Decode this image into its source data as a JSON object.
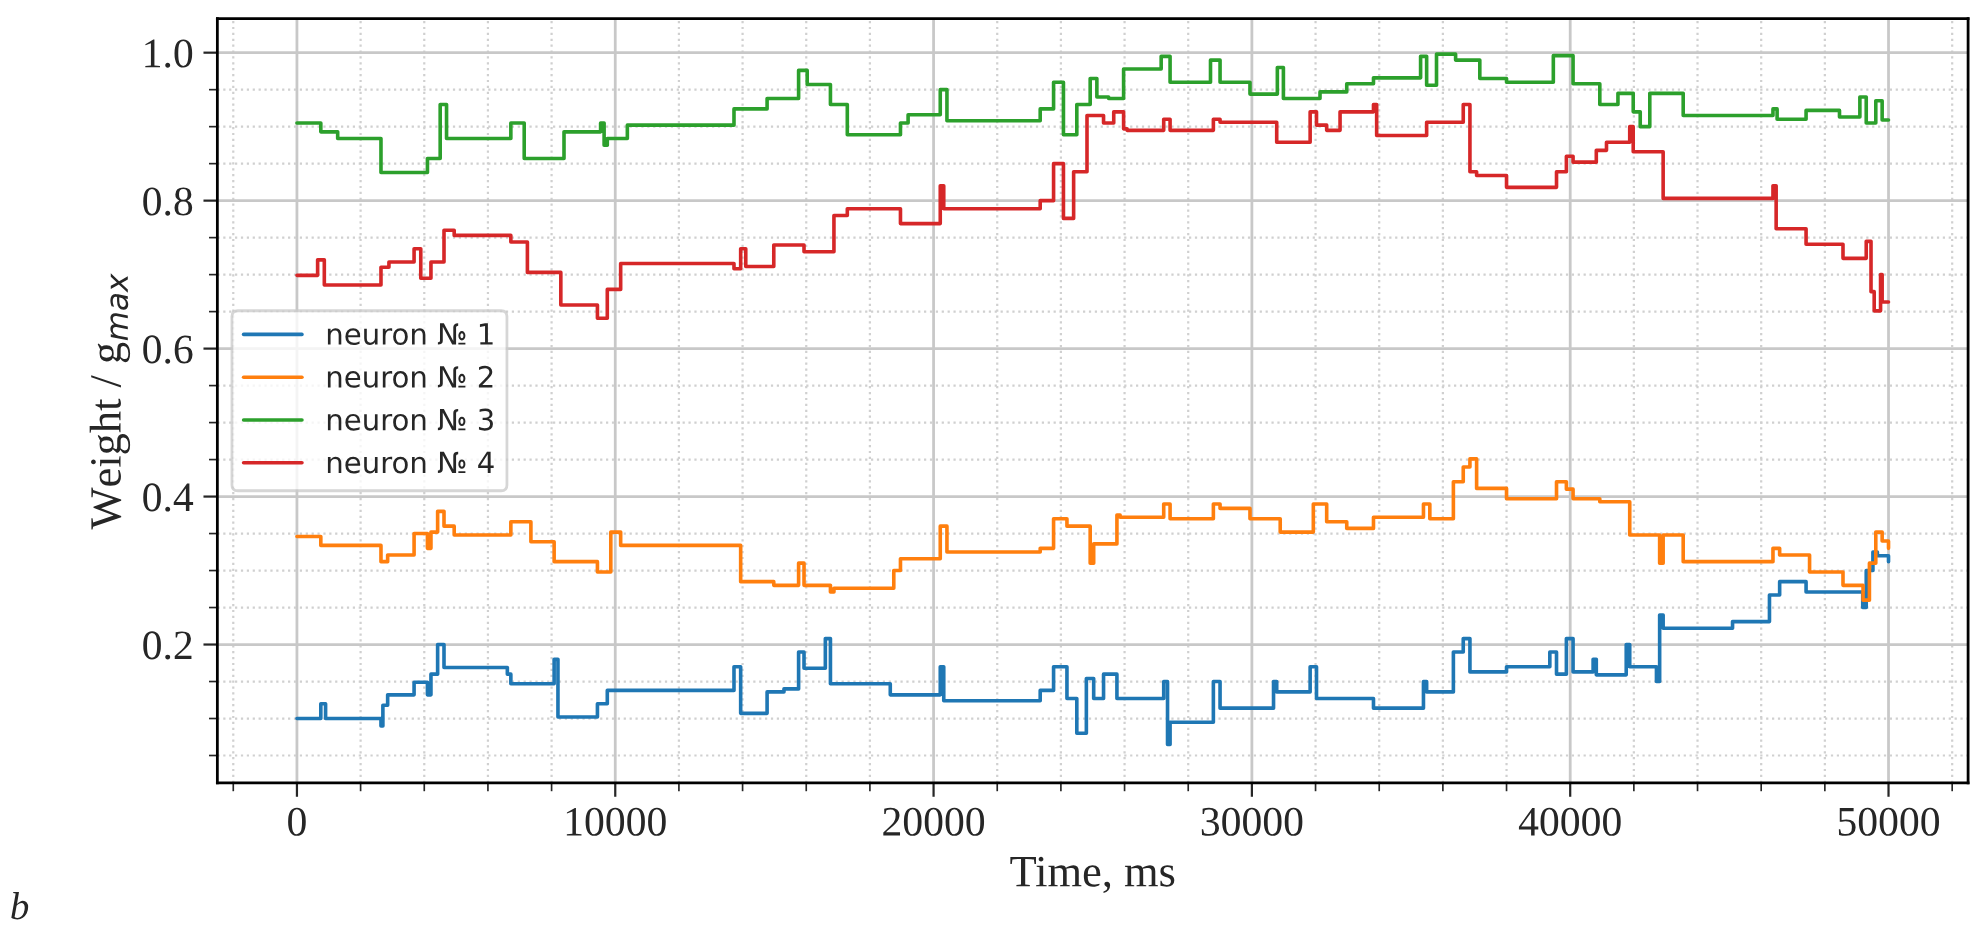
{
  "chart_data": {
    "type": "step",
    "xlabel": "Time, ms",
    "ylabel": "Weight / g$_{max}$",
    "xlim": [
      -2500,
      52500
    ],
    "ylim": [
      0.013,
      1.046
    ],
    "xticks": [
      {
        "value": -2000,
        "label": null
      },
      0,
      {
        "value": 2000,
        "label": null
      },
      {
        "value": 4000,
        "label": null
      },
      {
        "value": 6000,
        "label": null
      },
      {
        "value": 8000,
        "label": null
      },
      10000,
      {
        "value": 12000,
        "label": null
      },
      {
        "value": 14000,
        "label": null
      },
      {
        "value": 16000,
        "label": null
      },
      {
        "value": 18000,
        "label": null
      },
      20000,
      {
        "value": 22000,
        "label": null
      },
      {
        "value": 24000,
        "label": null
      },
      {
        "value": 26000,
        "label": null
      },
      {
        "value": 28000,
        "label": null
      },
      30000,
      {
        "value": 32000,
        "label": null
      },
      {
        "value": 34000,
        "label": null
      },
      {
        "value": 36000,
        "label": null
      },
      {
        "value": 38000,
        "label": null
      },
      40000,
      {
        "value": 42000,
        "label": null
      },
      {
        "value": 44000,
        "label": null
      },
      {
        "value": 46000,
        "label": null
      },
      {
        "value": 48000,
        "label": null
      },
      50000,
      {
        "value": 52000,
        "label": null
      }
    ],
    "yticks": [
      {
        "value": 0.05,
        "label": null
      },
      {
        "value": 0.1,
        "label": null
      },
      {
        "value": 0.15,
        "label": null
      },
      {
        "value": 0.2,
        "label": "0.2"
      },
      {
        "value": 0.25,
        "label": null
      },
      {
        "value": 0.3,
        "label": null
      },
      {
        "value": 0.35,
        "label": null
      },
      {
        "value": 0.4,
        "label": "0.4"
      },
      {
        "value": 0.45,
        "label": null
      },
      {
        "value": 0.5,
        "label": null
      },
      {
        "value": 0.55,
        "label": null
      },
      {
        "value": 0.6,
        "label": "0.6"
      },
      {
        "value": 0.65,
        "label": null
      },
      {
        "value": 0.7,
        "label": null
      },
      {
        "value": 0.75,
        "label": null
      },
      {
        "value": 0.8,
        "label": "0.8"
      },
      {
        "value": 0.85,
        "label": null
      },
      {
        "value": 0.9,
        "label": null
      },
      {
        "value": 0.95,
        "label": null
      },
      {
        "value": 1.0,
        "label": "1.0"
      }
    ],
    "grid": true,
    "legend": "left",
    "line_style": "solid",
    "marker": "none",
    "annotations": [
      "b"
    ],
    "series": [
      {
        "name": "neuron № 1",
        "color": "#1f77b4",
        "x": [
          0,
          750,
          900,
          2640,
          2700,
          2850,
          3680,
          4100,
          4210,
          4420,
          4620,
          4940,
          6610,
          6720,
          7240,
          8080,
          8200,
          8290,
          9440,
          9750,
          9900,
          13520,
          13730,
          13940,
          14770,
          15300,
          15760,
          15930,
          16600,
          16760,
          16870,
          18640,
          18960,
          20210,
          20320,
          23140,
          23350,
          23770,
          24190,
          24500,
          24800,
          25030,
          25340,
          25760,
          25860,
          27230,
          27350,
          27430,
          28790,
          29000,
          30680,
          30780,
          31830,
          32030,
          33820,
          35390,
          35490,
          36330,
          36640,
          36850,
          37060,
          38000,
          39360,
          39570,
          39880,
          40090,
          40720,
          40820,
          41760,
          41870,
          41980,
          42710,
          42810,
          42920,
          45100,
          46260,
          46580,
          47410,
          49190,
          49300,
          49510,
          49650,
          50000
        ],
        "values": [
          0.1,
          0.12,
          0.1,
          0.09,
          0.118,
          0.132,
          0.149,
          0.132,
          0.16,
          0.2,
          0.169,
          0.169,
          0.16,
          0.147,
          0.147,
          0.18,
          0.102,
          0.102,
          0.12,
          0.138,
          0.138,
          0.138,
          0.17,
          0.107,
          0.136,
          0.14,
          0.19,
          0.168,
          0.208,
          0.147,
          0.147,
          0.132,
          0.132,
          0.17,
          0.124,
          0.124,
          0.138,
          0.17,
          0.127,
          0.08,
          0.154,
          0.127,
          0.16,
          0.127,
          0.127,
          0.15,
          0.065,
          0.095,
          0.15,
          0.114,
          0.15,
          0.136,
          0.17,
          0.127,
          0.114,
          0.15,
          0.136,
          0.19,
          0.208,
          0.163,
          0.163,
          0.17,
          0.19,
          0.16,
          0.208,
          0.163,
          0.18,
          0.159,
          0.2,
          0.17,
          0.17,
          0.15,
          0.24,
          0.222,
          0.231,
          0.267,
          0.285,
          0.271,
          0.25,
          0.3,
          0.325,
          0.32,
          0.312
        ]
      },
      {
        "name": "neuron № 2",
        "color": "#ff7f0e",
        "x": [
          0,
          750,
          2640,
          2850,
          3680,
          4100,
          4210,
          4420,
          4620,
          4940,
          6610,
          6720,
          7350,
          8080,
          8290,
          9440,
          9860,
          10170,
          13520,
          13940,
          14770,
          14980,
          15760,
          15930,
          16760,
          16870,
          18640,
          18750,
          18960,
          20210,
          20420,
          23140,
          23350,
          23770,
          24190,
          24920,
          25030,
          25760,
          25860,
          27230,
          27430,
          28790,
          29000,
          29940,
          30890,
          31930,
          32350,
          32980,
          33820,
          35390,
          35590,
          36330,
          36640,
          36850,
          37060,
          38000,
          39570,
          39880,
          40090,
          40930,
          41870,
          42810,
          42920,
          43550,
          46370,
          46580,
          47520,
          48570,
          49200,
          49400,
          49600,
          49800,
          50000
        ],
        "values": [
          0.346,
          0.334,
          0.312,
          0.321,
          0.35,
          0.33,
          0.352,
          0.38,
          0.36,
          0.348,
          0.348,
          0.366,
          0.339,
          0.312,
          0.312,
          0.298,
          0.352,
          0.334,
          0.334,
          0.285,
          0.285,
          0.28,
          0.31,
          0.28,
          0.271,
          0.276,
          0.276,
          0.3,
          0.316,
          0.36,
          0.325,
          0.325,
          0.33,
          0.37,
          0.36,
          0.31,
          0.336,
          0.375,
          0.372,
          0.39,
          0.37,
          0.39,
          0.384,
          0.37,
          0.352,
          0.39,
          0.366,
          0.357,
          0.372,
          0.39,
          0.37,
          0.42,
          0.44,
          0.451,
          0.411,
          0.397,
          0.42,
          0.41,
          0.397,
          0.393,
          0.348,
          0.31,
          0.348,
          0.312,
          0.33,
          0.321,
          0.298,
          0.28,
          0.26,
          0.31,
          0.352,
          0.34,
          0.33
        ]
      },
      {
        "name": "neuron № 3",
        "color": "#2ca02c",
        "x": [
          0,
          750,
          1280,
          2640,
          4100,
          4500,
          4700,
          6610,
          6720,
          7140,
          8080,
          8390,
          9540,
          9650,
          9750,
          10380,
          13200,
          13730,
          14770,
          15760,
          16030,
          16760,
          17290,
          18750,
          18960,
          19200,
          20210,
          20420,
          23140,
          23350,
          23770,
          24080,
          24500,
          24920,
          25130,
          25500,
          25970,
          27150,
          27430,
          28700,
          29000,
          29940,
          30800,
          30990,
          32140,
          32980,
          33820,
          35300,
          35490,
          35800,
          36400,
          37160,
          38000,
          39470,
          40090,
          40930,
          41500,
          41980,
          42200,
          42500,
          43550,
          46370,
          46500,
          47410,
          48460,
          49100,
          49300,
          49600,
          49800,
          50000
        ],
        "values": [
          0.905,
          0.893,
          0.884,
          0.838,
          0.857,
          0.93,
          0.884,
          0.884,
          0.905,
          0.857,
          0.857,
          0.893,
          0.905,
          0.875,
          0.884,
          0.902,
          0.902,
          0.924,
          0.938,
          0.976,
          0.957,
          0.93,
          0.889,
          0.889,
          0.905,
          0.916,
          0.95,
          0.908,
          0.908,
          0.924,
          0.96,
          0.889,
          0.93,
          0.965,
          0.94,
          0.938,
          0.978,
          0.995,
          0.96,
          0.99,
          0.96,
          0.944,
          0.98,
          0.938,
          0.947,
          0.958,
          0.966,
          0.995,
          0.956,
          0.998,
          0.99,
          0.965,
          0.96,
          0.996,
          0.958,
          0.93,
          0.945,
          0.92,
          0.9,
          0.945,
          0.915,
          0.924,
          0.91,
          0.922,
          0.913,
          0.94,
          0.905,
          0.935,
          0.909,
          0.909
        ]
      },
      {
        "name": "neuron № 4",
        "color": "#d62728",
        "x": [
          0,
          650,
          860,
          2640,
          2890,
          3680,
          3890,
          4210,
          4620,
          4940,
          6610,
          6720,
          7240,
          8080,
          8290,
          9330,
          9440,
          9750,
          10170,
          13200,
          13730,
          13940,
          14100,
          14670,
          14980,
          15930,
          16870,
          17290,
          18750,
          18960,
          20210,
          20320,
          23140,
          23350,
          23770,
          24080,
          24400,
          24820,
          25340,
          25660,
          25970,
          26080,
          27230,
          27430,
          28790,
          29000,
          30680,
          30780,
          31830,
          32030,
          32350,
          32770,
          33710,
          33820,
          33920,
          35280,
          35490,
          36330,
          36640,
          36850,
          37060,
          38000,
          39360,
          39570,
          39880,
          40090,
          40820,
          41140,
          41760,
          41870,
          41980,
          42710,
          42920,
          46260,
          46370,
          46470,
          47410,
          48570,
          49190,
          49300,
          49450,
          49550,
          49750,
          49800,
          50000
        ],
        "values": [
          0.699,
          0.72,
          0.686,
          0.71,
          0.717,
          0.735,
          0.695,
          0.717,
          0.76,
          0.753,
          0.753,
          0.744,
          0.703,
          0.703,
          0.659,
          0.659,
          0.641,
          0.68,
          0.715,
          0.715,
          0.708,
          0.735,
          0.711,
          0.711,
          0.74,
          0.731,
          0.78,
          0.789,
          0.789,
          0.769,
          0.82,
          0.789,
          0.789,
          0.8,
          0.85,
          0.776,
          0.839,
          0.915,
          0.905,
          0.92,
          0.897,
          0.895,
          0.91,
          0.895,
          0.91,
          0.906,
          0.906,
          0.879,
          0.92,
          0.902,
          0.895,
          0.92,
          0.92,
          0.93,
          0.888,
          0.888,
          0.906,
          0.906,
          0.93,
          0.839,
          0.834,
          0.818,
          0.818,
          0.839,
          0.86,
          0.852,
          0.868,
          0.879,
          0.879,
          0.9,
          0.866,
          0.866,
          0.803,
          0.803,
          0.82,
          0.762,
          0.741,
          0.722,
          0.722,
          0.745,
          0.677,
          0.651,
          0.7,
          0.663,
          0.663
        ]
      }
    ]
  }
}
